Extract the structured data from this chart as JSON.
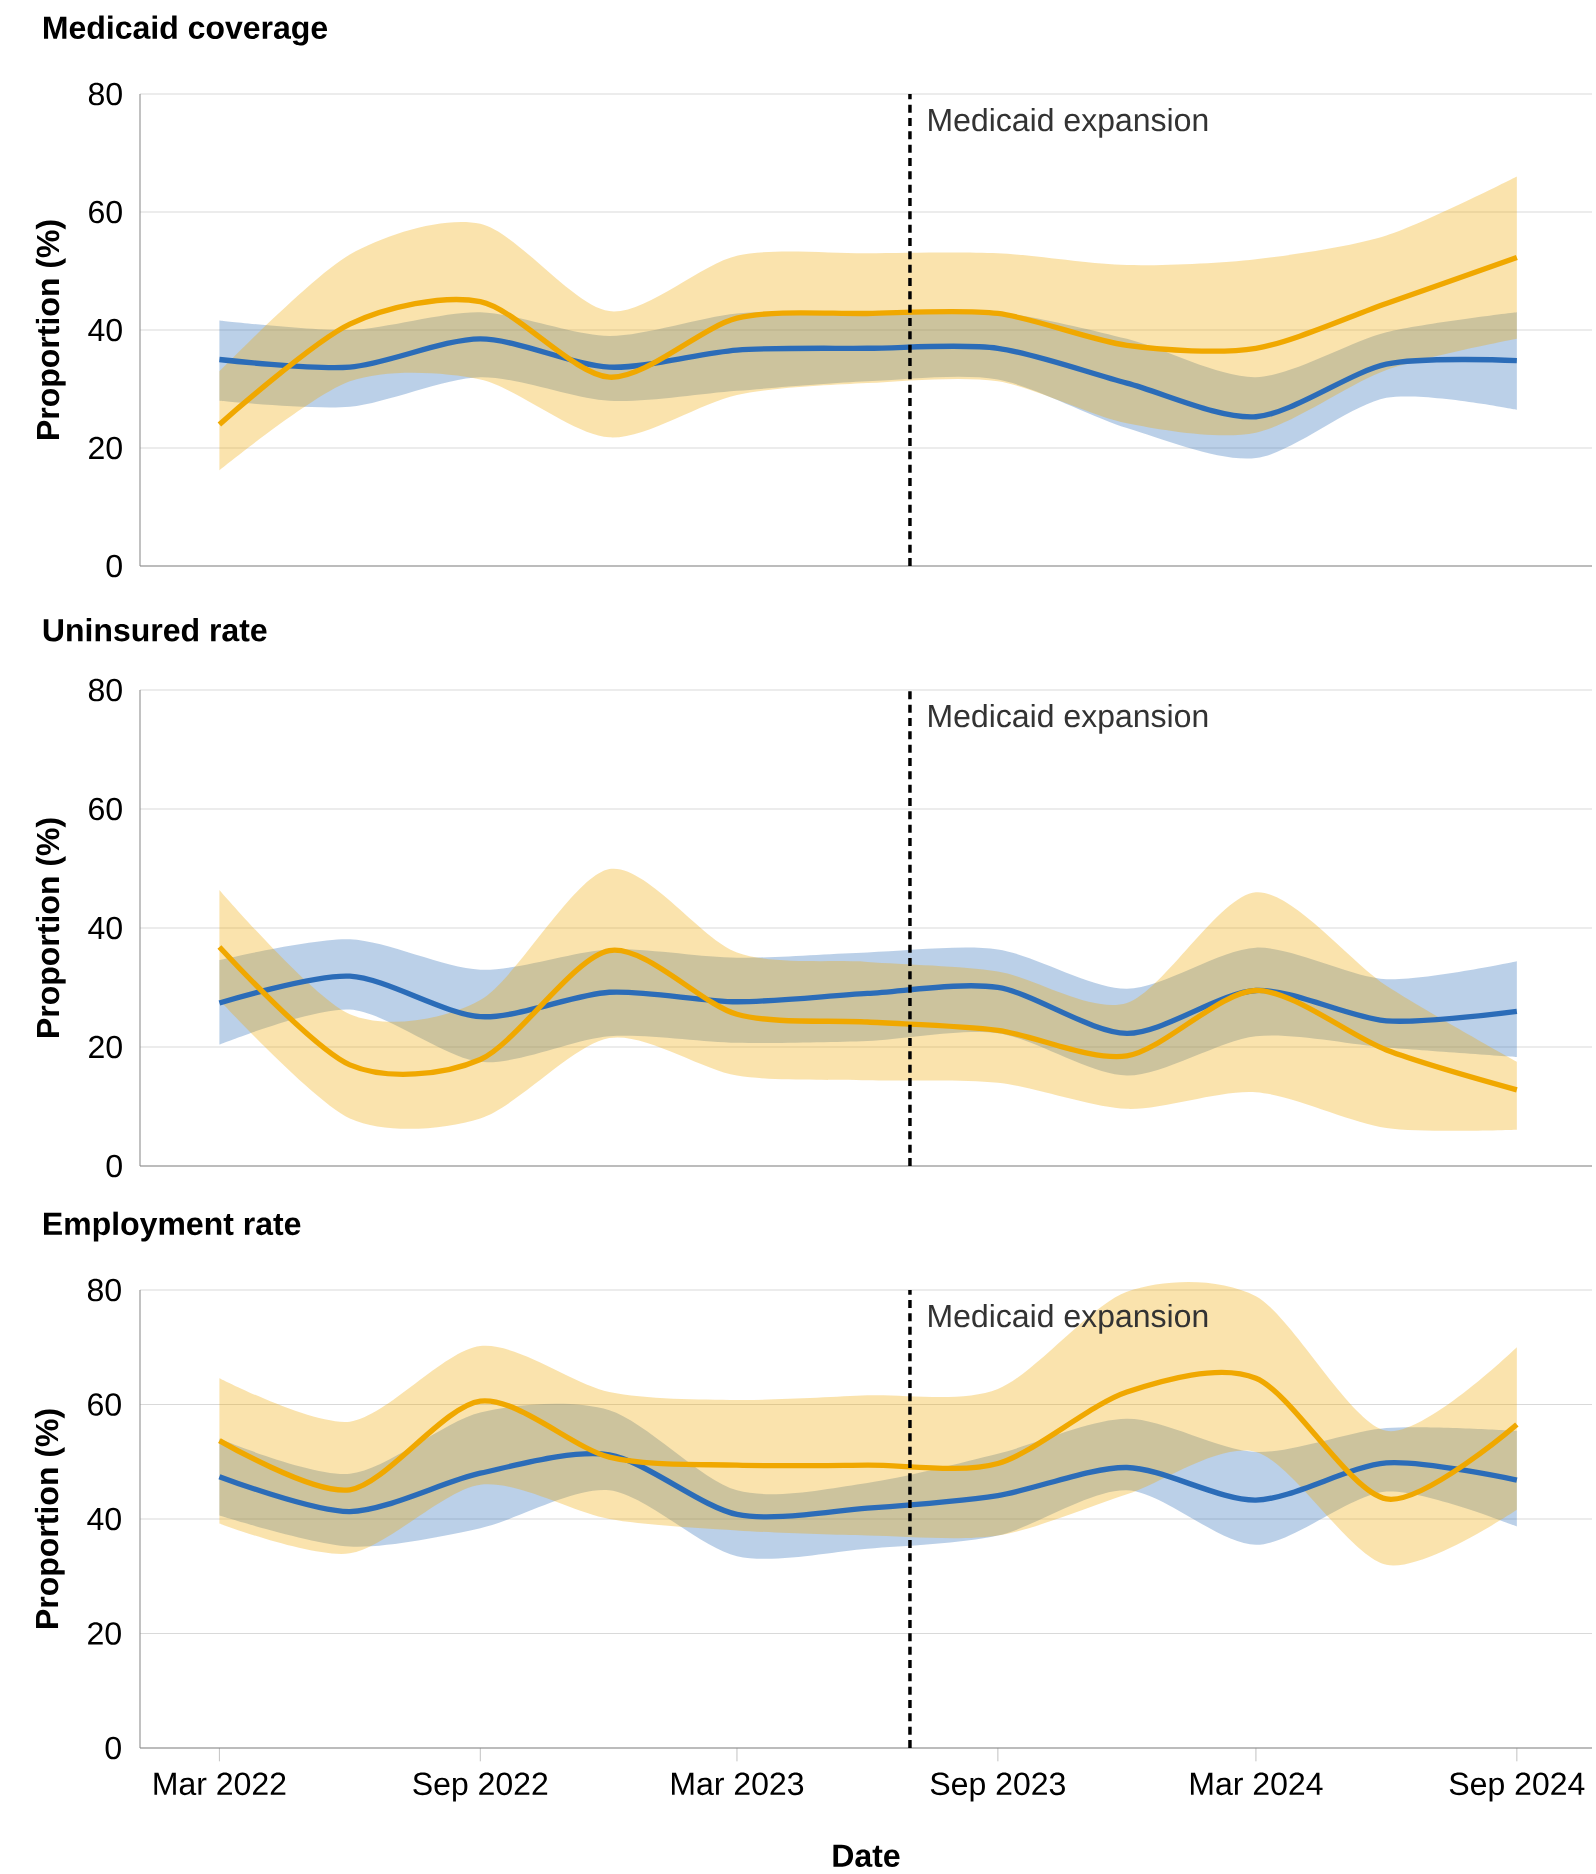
{
  "chart_data": [
    {
      "type": "line",
      "title": "Medicaid coverage",
      "ylabel": "Proportion (%)",
      "x": [
        "2022-03",
        "2022-06",
        "2022-09",
        "2022-12",
        "2023-03",
        "2023-06",
        "2023-09",
        "2023-12",
        "2024-03",
        "2024-06",
        "2024-09"
      ],
      "series": [
        {
          "color": "#2b6cb8",
          "values": [
            35,
            33.7,
            38.5,
            33.7,
            36.6,
            36.9,
            36.9,
            31,
            25.3,
            34.2,
            34.8
          ],
          "lower": [
            28,
            27,
            32,
            28,
            29.7,
            31.3,
            31.6,
            23.4,
            18.3,
            28.5,
            26.5
          ],
          "upper": [
            41.6,
            40,
            43,
            39,
            42.8,
            43,
            43,
            38.5,
            32,
            39.6,
            43
          ]
        },
        {
          "color": "#f0a800",
          "values": [
            24,
            41,
            44.8,
            32,
            42,
            42.8,
            42.8,
            37.4,
            36.9,
            44.5,
            52.3
          ],
          "lower": [
            16.2,
            31.3,
            31.6,
            21.8,
            29,
            31,
            31.3,
            24.2,
            22.6,
            33.2,
            38.5
          ],
          "upper": [
            33,
            52.8,
            58,
            43.2,
            52.6,
            53,
            53,
            51,
            52,
            56,
            66
          ]
        }
      ],
      "xlim": [
        "2022-01-04",
        "2024-10-24"
      ],
      "ylim": [
        0,
        80
      ],
      "yticks": [
        0,
        20,
        40,
        60,
        80
      ],
      "tick_labels": "y",
      "grid": "y",
      "ref_lines": [
        {
          "axis": "x",
          "value": "2023-07",
          "label": "Medicaid expansion",
          "color": "#000000",
          "line_style": "dashed"
        }
      ]
    },
    {
      "type": "line",
      "title": "Uninsured rate",
      "ylabel": "Proportion (%)",
      "x": [
        "2022-03",
        "2022-06",
        "2022-09",
        "2022-12",
        "2023-03",
        "2023-06",
        "2023-09",
        "2023-12",
        "2024-03",
        "2024-06",
        "2024-09"
      ],
      "series": [
        {
          "color": "#2b6cb8",
          "values": [
            27.4,
            31.9,
            25.1,
            29.2,
            27.6,
            29,
            30,
            22.3,
            29.5,
            24.4,
            26
          ],
          "lower": [
            20.4,
            26.3,
            17.5,
            21.8,
            20.7,
            21,
            22.3,
            15.2,
            21.8,
            19.9,
            18.3
          ],
          "upper": [
            34.6,
            38.1,
            33,
            36.4,
            35,
            35.9,
            36.4,
            29.8,
            36.7,
            31.4,
            34.4
          ]
        },
        {
          "color": "#f0a800",
          "values": [
            36.8,
            17,
            17.9,
            36.2,
            25.5,
            24.2,
            22.8,
            18.5,
            29.5,
            19.5,
            12.8
          ],
          "lower": [
            27.9,
            8,
            8,
            21.5,
            15.2,
            14.4,
            14,
            9.6,
            12.4,
            6.4,
            6.1
          ],
          "upper": [
            46.4,
            25.5,
            27.9,
            49.9,
            35.9,
            34.3,
            32.7,
            27.4,
            46,
            30.3,
            17.5
          ]
        }
      ],
      "xlim": [
        "2022-01-04",
        "2024-10-24"
      ],
      "ylim": [
        0,
        80
      ],
      "yticks": [
        0,
        20,
        40,
        60,
        80
      ],
      "tick_labels": "y",
      "grid": "y",
      "ref_lines": [
        {
          "axis": "x",
          "value": "2023-07",
          "label": "Medicaid expansion",
          "color": "#000000",
          "line_style": "dashed"
        }
      ]
    },
    {
      "type": "line",
      "title": "Employment rate",
      "xlabel": "Date",
      "ylabel": "Proportion (%)",
      "x": [
        "2022-03",
        "2022-06",
        "2022-09",
        "2022-12",
        "2023-03",
        "2023-06",
        "2023-09",
        "2023-12",
        "2024-03",
        "2024-06",
        "2024-09"
      ],
      "series": [
        {
          "color": "#2b6cb8",
          "values": [
            47.4,
            41.3,
            48,
            51.2,
            40.8,
            41.9,
            44.1,
            49,
            43.3,
            49.8,
            46.8
          ],
          "lower": [
            40.6,
            35.2,
            38.4,
            45,
            33.5,
            34.8,
            37.1,
            45,
            35.5,
            44.8,
            38.7
          ],
          "upper": [
            54,
            47.9,
            58.6,
            59,
            45,
            46.3,
            51.4,
            57.5,
            51.7,
            55.9,
            55.4
          ]
        },
        {
          "color": "#f0a800",
          "values": [
            53.7,
            45.1,
            60.6,
            50.8,
            49.4,
            49.4,
            49.7,
            62.2,
            64.6,
            43.5,
            56.5
          ],
          "lower": [
            39.2,
            34,
            46,
            40,
            38,
            37.1,
            37.1,
            44.3,
            51.7,
            32,
            41.6
          ],
          "upper": [
            64.6,
            57,
            70.2,
            62.2,
            60.8,
            61.6,
            62.7,
            79.7,
            78.9,
            55.4,
            70
          ]
        }
      ],
      "xlim": [
        "2022-01-04",
        "2024-10-24"
      ],
      "ylim": [
        0,
        80
      ],
      "xticks": [
        {
          "value": "2022-03",
          "label": "Mar 2022"
        },
        {
          "value": "2022-09",
          "label": "Sep 2022"
        },
        {
          "value": "2023-03",
          "label": "Mar 2023"
        },
        {
          "value": "2023-09",
          "label": "Sep 2023"
        },
        {
          "value": "2024-03",
          "label": "Mar 2024"
        },
        {
          "value": "2024-09",
          "label": "Sep 2024"
        }
      ],
      "yticks": [
        0,
        20,
        40,
        60,
        80
      ],
      "grid": "y",
      "ref_lines": [
        {
          "axis": "x",
          "value": "2023-07",
          "label": "Medicaid expansion",
          "color": "#000000",
          "line_style": "dashed"
        }
      ]
    }
  ]
}
